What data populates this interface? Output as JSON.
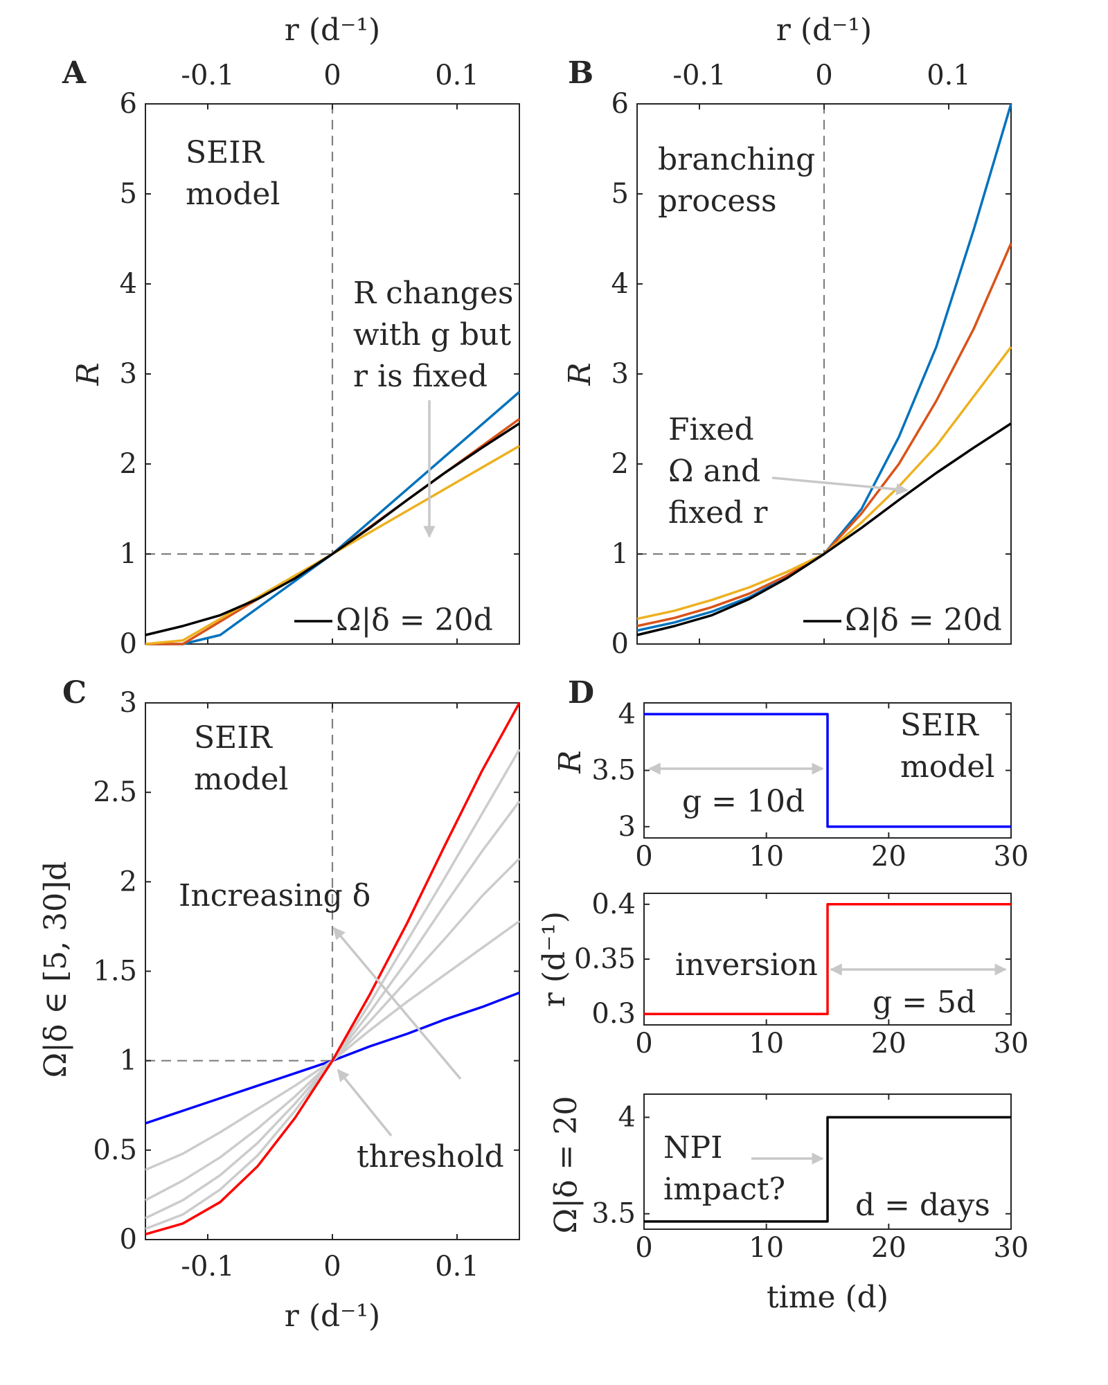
{
  "panels": {
    "A": {
      "letter": "A",
      "top_label": "r (d⁻¹)",
      "ylabel": "R",
      "annotation_model": [
        "SEIR",
        "model"
      ],
      "annotation_arrow": [
        "R changes",
        "with g but",
        "r is fixed"
      ],
      "legend": "Ω|δ = 20d"
    },
    "B": {
      "letter": "B",
      "top_label": "r (d⁻¹)",
      "ylabel": "R",
      "annotation_model": [
        "branching",
        "process"
      ],
      "annotation_arrow": [
        "Fixed",
        "Ω and",
        "fixed r"
      ],
      "legend": "Ω|δ = 20d"
    },
    "C": {
      "letter": "C",
      "xlabel": "r (d⁻¹)",
      "ylabel": "Ω|δ ∈ [5, 30]d",
      "annotation_model": [
        "SEIR",
        "model"
      ],
      "annotation_arrow": "Increasing δ",
      "annotation_threshold": "threshold"
    },
    "D": {
      "letter": "D",
      "xlabel": "time (d)",
      "annotation_model": [
        "SEIR",
        "model"
      ],
      "annotation_g1": "g = 10d",
      "annotation_inversion": "inversion",
      "annotation_g2": "g = 5d",
      "annotation_npi": [
        "NPI",
        "impact?"
      ],
      "annotation_days": "d = days"
    }
  },
  "chart_data": [
    {
      "id": "A",
      "type": "line",
      "title": "",
      "xlabel": "r (d⁻¹)",
      "ylabel": "R",
      "xlim": [
        -0.15,
        0.15
      ],
      "ylim": [
        0,
        6
      ],
      "xticks": [
        "-0.1",
        "0",
        "0.1"
      ],
      "yticks": [
        "0",
        "1",
        "2",
        "3",
        "4",
        "5",
        "6"
      ],
      "x": [
        -0.15,
        -0.12,
        -0.09,
        -0.06,
        -0.03,
        0,
        0.03,
        0.06,
        0.09,
        0.12,
        0.15
      ],
      "series": [
        {
          "name": "",
          "color": "#0072BD",
          "values": [
            0,
            0,
            0.1,
            0.4,
            0.7,
            1,
            1.36,
            1.72,
            2.08,
            2.44,
            2.8
          ]
        },
        {
          "name": "",
          "color": "#D95319",
          "values": [
            0,
            0,
            0.25,
            0.5,
            0.75,
            1,
            1.3,
            1.6,
            1.9,
            2.2,
            2.5
          ]
        },
        {
          "name": "",
          "color": "#EDB120",
          "values": [
            0,
            0.04,
            0.28,
            0.52,
            0.76,
            1,
            1.24,
            1.48,
            1.72,
            1.96,
            2.2
          ]
        },
        {
          "name": "Ω|δ = 20d",
          "color": "#000000",
          "values": [
            0.1,
            0.2,
            0.32,
            0.5,
            0.73,
            1,
            1.29,
            1.6,
            1.9,
            2.18,
            2.45
          ]
        }
      ],
      "reference_lines": {
        "x": 0,
        "y": 1
      }
    },
    {
      "id": "B",
      "type": "line",
      "title": "",
      "xlabel": "r (d⁻¹)",
      "ylabel": "R",
      "xlim": [
        -0.15,
        0.15
      ],
      "ylim": [
        0,
        6
      ],
      "xticks": [
        "-0.1",
        "0",
        "0.1"
      ],
      "yticks": [
        "0",
        "1",
        "2",
        "3",
        "4",
        "5",
        "6"
      ],
      "x": [
        -0.15,
        -0.12,
        -0.09,
        -0.06,
        -0.03,
        0,
        0.03,
        0.06,
        0.09,
        0.12,
        0.15
      ],
      "series": [
        {
          "name": "",
          "color": "#0072BD",
          "values": [
            0.15,
            0.24,
            0.36,
            0.52,
            0.74,
            1,
            1.5,
            2.3,
            3.3,
            4.6,
            6.0
          ]
        },
        {
          "name": "",
          "color": "#D95319",
          "values": [
            0.2,
            0.29,
            0.41,
            0.56,
            0.76,
            1,
            1.45,
            2.0,
            2.7,
            3.5,
            4.45
          ]
        },
        {
          "name": "",
          "color": "#EDB120",
          "values": [
            0.28,
            0.37,
            0.49,
            0.63,
            0.8,
            1,
            1.35,
            1.75,
            2.2,
            2.75,
            3.3
          ]
        },
        {
          "name": "Ω|δ = 20d",
          "color": "#000000",
          "values": [
            0.1,
            0.2,
            0.32,
            0.5,
            0.73,
            1,
            1.29,
            1.6,
            1.9,
            2.18,
            2.45
          ]
        }
      ],
      "reference_lines": {
        "x": 0,
        "y": 1
      }
    },
    {
      "id": "C",
      "type": "line",
      "title": "",
      "xlabel": "r (d⁻¹)",
      "ylabel": "Ω|δ ∈ [5, 30]d",
      "xlim": [
        -0.15,
        0.15
      ],
      "ylim": [
        0,
        3
      ],
      "xticks": [
        "-0.1",
        "0",
        "0.1"
      ],
      "yticks": [
        "0",
        "0.5",
        "1",
        "1.5",
        "2",
        "2.5",
        "3"
      ],
      "x": [
        -0.15,
        -0.12,
        -0.09,
        -0.06,
        -0.03,
        0,
        0.03,
        0.06,
        0.09,
        0.12,
        0.15
      ],
      "series": [
        {
          "name": "",
          "color": "#0000FF",
          "values": [
            0.65,
            0.72,
            0.79,
            0.86,
            0.93,
            1,
            1.08,
            1.15,
            1.23,
            1.3,
            1.38
          ]
        },
        {
          "name": "",
          "color": "#CCCCCC",
          "values": [
            0.39,
            0.48,
            0.6,
            0.73,
            0.86,
            1,
            1.17,
            1.33,
            1.48,
            1.63,
            1.78
          ]
        },
        {
          "name": "",
          "color": "#CCCCCC",
          "values": [
            0.22,
            0.33,
            0.46,
            0.62,
            0.8,
            1,
            1.22,
            1.45,
            1.68,
            1.92,
            2.13
          ]
        },
        {
          "name": "",
          "color": "#CCCCCC",
          "values": [
            0.12,
            0.22,
            0.36,
            0.54,
            0.76,
            1,
            1.27,
            1.56,
            1.87,
            2.17,
            2.45
          ]
        },
        {
          "name": "",
          "color": "#CCCCCC",
          "values": [
            0.06,
            0.14,
            0.28,
            0.47,
            0.72,
            1,
            1.32,
            1.67,
            2.02,
            2.38,
            2.74
          ]
        },
        {
          "name": "",
          "color": "#FF0000",
          "values": [
            0.03,
            0.09,
            0.21,
            0.41,
            0.68,
            1,
            1.37,
            1.77,
            2.2,
            2.62,
            3.0
          ]
        }
      ],
      "reference_lines": {
        "x": 0,
        "y": 1
      }
    },
    {
      "id": "D1",
      "type": "line",
      "title": "",
      "xlabel": "",
      "ylabel": "R",
      "xlim": [
        0,
        30
      ],
      "ylim": [
        2.9,
        4.1
      ],
      "xticks": [
        "0",
        "10",
        "20",
        "30"
      ],
      "yticks": [
        "3",
        "3.5",
        "4"
      ],
      "series": [
        {
          "name": "",
          "color": "#0000FF",
          "x": [
            0,
            15,
            15,
            30
          ],
          "values": [
            4,
            4,
            3,
            3
          ]
        }
      ]
    },
    {
      "id": "D2",
      "type": "line",
      "title": "",
      "xlabel": "",
      "ylabel": "r (d⁻¹)",
      "xlim": [
        0,
        30
      ],
      "ylim": [
        0.29,
        0.41
      ],
      "xticks": [
        "0",
        "10",
        "20",
        "30"
      ],
      "yticks": [
        "0.3",
        "0.35",
        "0.4"
      ],
      "series": [
        {
          "name": "",
          "color": "#FF0000",
          "x": [
            0,
            15,
            15,
            30
          ],
          "values": [
            0.3,
            0.3,
            0.4,
            0.4
          ]
        }
      ]
    },
    {
      "id": "D3",
      "type": "line",
      "title": "",
      "xlabel": "time (d)",
      "ylabel": "Ω|δ = 20",
      "xlim": [
        0,
        30
      ],
      "ylim": [
        3.42,
        4.12
      ],
      "xticks": [
        "0",
        "10",
        "20",
        "30"
      ],
      "yticks": [
        "3.5",
        "4"
      ],
      "series": [
        {
          "name": "",
          "color": "#000000",
          "x": [
            0,
            15,
            15,
            30
          ],
          "values": [
            3.46,
            3.46,
            4,
            4
          ]
        }
      ]
    }
  ]
}
